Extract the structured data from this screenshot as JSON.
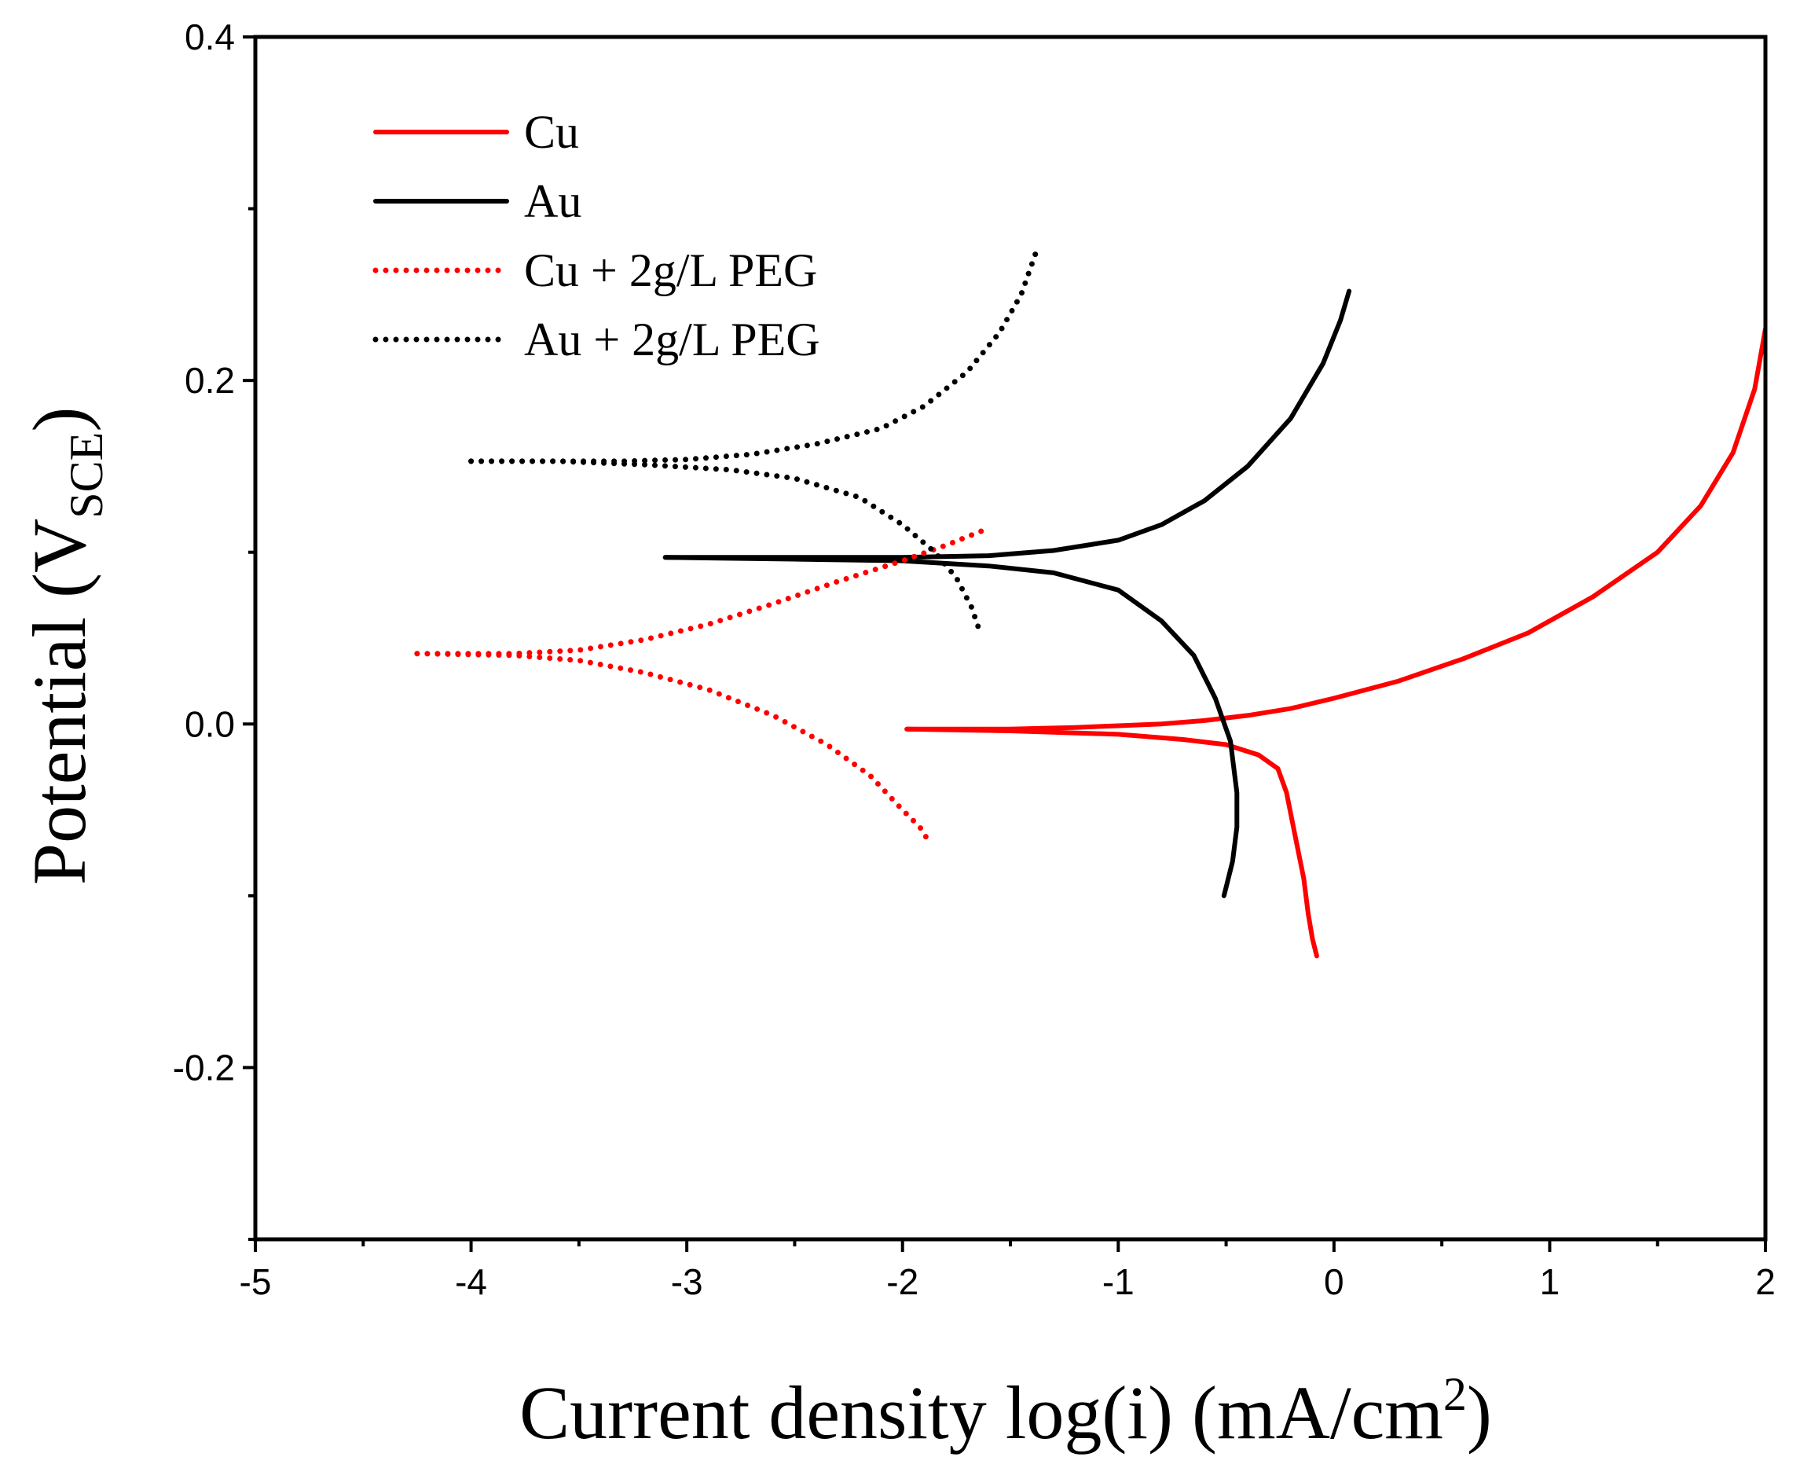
{
  "chart_data": {
    "type": "line",
    "title": "",
    "xlabel_main": "Current density log(i) (mA/cm",
    "xlabel_sup": "2",
    "xlabel_end": ")",
    "ylabel_main": "Potential (V",
    "ylabel_sub": "SCE",
    "ylabel_end": ")",
    "xlim": [
      -5,
      2
    ],
    "ylim": [
      -0.3,
      0.4
    ],
    "x_ticks": [
      -5,
      -4,
      -3,
      -2,
      -1,
      0,
      1,
      2
    ],
    "x_tick_labels": [
      "-5",
      "-4",
      "-3",
      "-2",
      "-1",
      "0",
      "1",
      "2"
    ],
    "y_ticks": [
      -0.2,
      0.0,
      0.2,
      0.4
    ],
    "y_tick_labels": [
      "-0.2",
      "0.0",
      "0.2",
      "0.4"
    ],
    "grid": false,
    "legend_position": "top-left",
    "series": [
      {
        "name": "Cu",
        "color": "#ff0000",
        "style": "solid",
        "anodic": [
          [
            -1.98,
            -0.003
          ],
          [
            -1.5,
            -0.003
          ],
          [
            -1.2,
            -0.002
          ],
          [
            -1.0,
            -0.001
          ],
          [
            -0.8,
            0.0
          ],
          [
            -0.6,
            0.002
          ],
          [
            -0.4,
            0.005
          ],
          [
            -0.2,
            0.009
          ],
          [
            0.0,
            0.015
          ],
          [
            0.3,
            0.025
          ],
          [
            0.6,
            0.038
          ],
          [
            0.9,
            0.053
          ],
          [
            1.2,
            0.074
          ],
          [
            1.5,
            0.1
          ],
          [
            1.7,
            0.127
          ],
          [
            1.85,
            0.158
          ],
          [
            1.95,
            0.195
          ],
          [
            2.0,
            0.23
          ]
        ],
        "cathodic": [
          [
            -1.98,
            -0.003
          ],
          [
            -1.5,
            -0.004
          ],
          [
            -1.0,
            -0.006
          ],
          [
            -0.7,
            -0.009
          ],
          [
            -0.5,
            -0.012
          ],
          [
            -0.35,
            -0.018
          ],
          [
            -0.26,
            -0.026
          ],
          [
            -0.22,
            -0.04
          ],
          [
            -0.18,
            -0.065
          ],
          [
            -0.14,
            -0.09
          ],
          [
            -0.12,
            -0.11
          ],
          [
            -0.1,
            -0.125
          ],
          [
            -0.08,
            -0.135
          ]
        ]
      },
      {
        "name": "Au",
        "color": "#000000",
        "style": "solid",
        "anodic": [
          [
            -3.1,
            0.097
          ],
          [
            -2.5,
            0.097
          ],
          [
            -2.0,
            0.097
          ],
          [
            -1.6,
            0.098
          ],
          [
            -1.3,
            0.101
          ],
          [
            -1.0,
            0.107
          ],
          [
            -0.8,
            0.116
          ],
          [
            -0.6,
            0.13
          ],
          [
            -0.4,
            0.15
          ],
          [
            -0.2,
            0.178
          ],
          [
            -0.05,
            0.21
          ],
          [
            0.03,
            0.235
          ],
          [
            0.07,
            0.252
          ]
        ],
        "cathodic": [
          [
            -3.1,
            0.097
          ],
          [
            -2.5,
            0.096
          ],
          [
            -2.0,
            0.095
          ],
          [
            -1.6,
            0.092
          ],
          [
            -1.3,
            0.088
          ],
          [
            -1.0,
            0.078
          ],
          [
            -0.8,
            0.06
          ],
          [
            -0.65,
            0.04
          ],
          [
            -0.55,
            0.015
          ],
          [
            -0.48,
            -0.01
          ],
          [
            -0.45,
            -0.04
          ],
          [
            -0.45,
            -0.06
          ],
          [
            -0.47,
            -0.08
          ],
          [
            -0.5,
            -0.095
          ],
          [
            -0.51,
            -0.1
          ]
        ]
      },
      {
        "name": "Cu + 2g/L PEG",
        "color": "#ff0000",
        "style": "dotted",
        "anodic": [
          [
            -4.25,
            0.041
          ],
          [
            -3.8,
            0.041
          ],
          [
            -3.5,
            0.043
          ],
          [
            -3.2,
            0.049
          ],
          [
            -2.9,
            0.058
          ],
          [
            -2.6,
            0.07
          ],
          [
            -2.3,
            0.083
          ],
          [
            -2.0,
            0.095
          ],
          [
            -1.8,
            0.104
          ],
          [
            -1.6,
            0.114
          ]
        ],
        "cathodic": [
          [
            -4.25,
            0.041
          ],
          [
            -3.8,
            0.04
          ],
          [
            -3.5,
            0.037
          ],
          [
            -3.2,
            0.03
          ],
          [
            -2.9,
            0.02
          ],
          [
            -2.6,
            0.005
          ],
          [
            -2.35,
            -0.012
          ],
          [
            -2.15,
            -0.03
          ],
          [
            -2.0,
            -0.05
          ],
          [
            -1.92,
            -0.06
          ],
          [
            -1.87,
            -0.07
          ]
        ]
      },
      {
        "name": "Au + 2g/L PEG",
        "color": "#000000",
        "style": "dotted",
        "anodic": [
          [
            -4.0,
            0.153
          ],
          [
            -3.6,
            0.153
          ],
          [
            -3.3,
            0.153
          ],
          [
            -3.0,
            0.154
          ],
          [
            -2.7,
            0.157
          ],
          [
            -2.4,
            0.163
          ],
          [
            -2.1,
            0.172
          ],
          [
            -1.9,
            0.185
          ],
          [
            -1.7,
            0.205
          ],
          [
            -1.55,
            0.228
          ],
          [
            -1.45,
            0.25
          ],
          [
            -1.38,
            0.275
          ]
        ],
        "cathodic": [
          [
            -4.0,
            0.153
          ],
          [
            -3.6,
            0.153
          ],
          [
            -3.2,
            0.151
          ],
          [
            -2.8,
            0.148
          ],
          [
            -2.5,
            0.143
          ],
          [
            -2.2,
            0.132
          ],
          [
            -2.0,
            0.116
          ],
          [
            -1.85,
            0.1
          ],
          [
            -1.75,
            0.085
          ],
          [
            -1.68,
            0.068
          ],
          [
            -1.64,
            0.053
          ]
        ]
      }
    ]
  }
}
